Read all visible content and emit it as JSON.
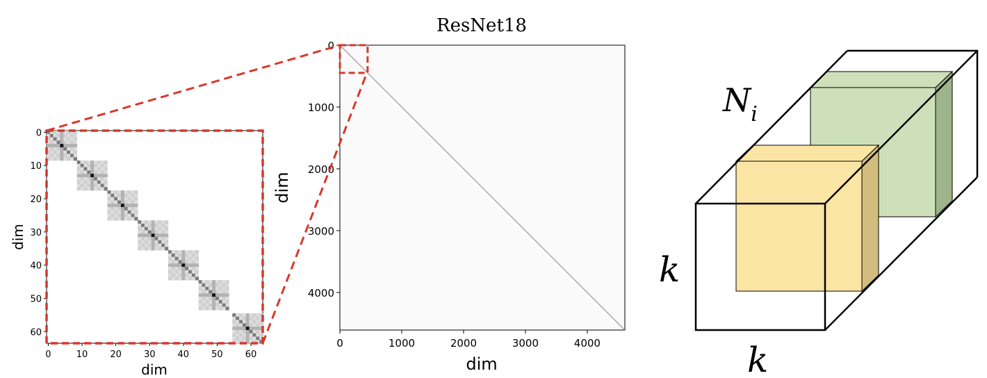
{
  "chart_data": [
    {
      "type": "heatmap",
      "title": "ResNet18",
      "xlabel": "dim",
      "ylabel": "dim",
      "x_ticks": [
        0,
        1000,
        2000,
        3000,
        4000
      ],
      "y_ticks": [
        0,
        1000,
        2000,
        3000,
        4000
      ],
      "xlim": [
        0,
        4608
      ],
      "ylim": [
        4608,
        0
      ],
      "colormap": "Greys",
      "pattern": "near-white matrix with a faint thin main diagonal",
      "zoom_region": {
        "x": [
          0,
          448
        ],
        "y": [
          0,
          448
        ]
      }
    },
    {
      "type": "heatmap",
      "title": "",
      "xlabel": "dim",
      "ylabel": "dim",
      "x_ticks": [
        0,
        10,
        20,
        30,
        40,
        50,
        60
      ],
      "y_ticks": [
        0,
        10,
        20,
        30,
        40,
        50,
        60
      ],
      "xlim": [
        0,
        64
      ],
      "ylim": [
        64,
        0
      ],
      "colormap": "Greys",
      "pattern": "seven 9x9 block-diagonal blocks with a dark center",
      "block_size": 9,
      "block_count": 7,
      "zoom_of": "top-left corner of the ResNet18 matrix"
    }
  ],
  "diagram": {
    "labels": {
      "channels": "N_i",
      "height": "k",
      "width": "k"
    },
    "colors": {
      "zoom_outline": "#d9372b",
      "front_cube_face": "#fbe5a4",
      "front_cube_side": "#d2bc7e",
      "back_cube_face": "#cde0ba",
      "back_cube_side": "#9eb48a"
    }
  }
}
